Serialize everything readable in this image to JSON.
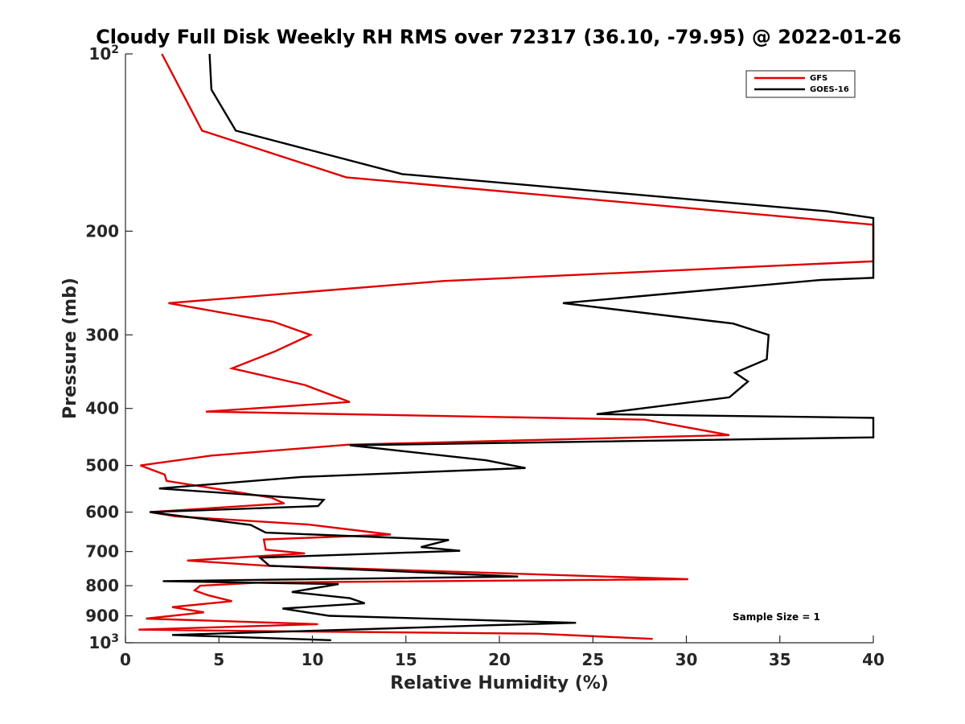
{
  "chart_data": {
    "type": "line",
    "title": "Cloudy Full Disk Weekly RH RMS over 72317 (36.10, -79.95) @ 2022-01-26",
    "xlabel": "Relative Humidity (%)",
    "ylabel": "Pressure (mb)",
    "xlim": [
      0,
      40
    ],
    "ylim": [
      100,
      1000
    ],
    "yscale": "log",
    "y_reversed": true,
    "grid": false,
    "legend_position": "top-right",
    "x_ticks": [
      "0",
      "5",
      "10",
      "15",
      "20",
      "25",
      "30",
      "35",
      "40"
    ],
    "y_ticks": [
      {
        "value": 100,
        "label": "10",
        "sup": "2"
      },
      {
        "value": 200,
        "label": "200",
        "sup": ""
      },
      {
        "value": 300,
        "label": "300",
        "sup": ""
      },
      {
        "value": 400,
        "label": "400",
        "sup": ""
      },
      {
        "value": 500,
        "label": "500",
        "sup": ""
      },
      {
        "value": 600,
        "label": "600",
        "sup": ""
      },
      {
        "value": 700,
        "label": "700",
        "sup": ""
      },
      {
        "value": 800,
        "label": "800",
        "sup": ""
      },
      {
        "value": 900,
        "label": "900",
        "sup": ""
      },
      {
        "value": 1000,
        "label": "10",
        "sup": "3"
      }
    ],
    "annotation": "Sample Size = 1",
    "series": [
      {
        "name": "GFS",
        "color": "#e00000",
        "points": [
          [
            1.95,
            100
          ],
          [
            2.95,
            115
          ],
          [
            4.1,
            135
          ],
          [
            11.8,
            162
          ],
          [
            40,
            195
          ],
          [
            40,
            225
          ],
          [
            17,
            243
          ],
          [
            2.3,
            265
          ],
          [
            7.9,
            285
          ],
          [
            9.9,
            300
          ],
          [
            8.0,
            320
          ],
          [
            5.7,
            342
          ],
          [
            9.6,
            365
          ],
          [
            12.0,
            390
          ],
          [
            4.3,
            405
          ],
          [
            27.8,
            418
          ],
          [
            32.3,
            444
          ],
          [
            11.9,
            461
          ],
          [
            4.6,
            481
          ],
          [
            0.8,
            500
          ],
          [
            2.1,
            518
          ],
          [
            2.2,
            531
          ],
          [
            7.8,
            567
          ],
          [
            8.5,
            580
          ],
          [
            1.3,
            600
          ],
          [
            2.7,
            610
          ],
          [
            9.8,
            630
          ],
          [
            14.2,
            655
          ],
          [
            7.4,
            668
          ],
          [
            7.5,
            695
          ],
          [
            9.6,
            705
          ],
          [
            3.3,
            725
          ],
          [
            7.6,
            740
          ],
          [
            30.1,
            780
          ],
          [
            7.3,
            790
          ],
          [
            4.0,
            800
          ],
          [
            3.7,
            815
          ],
          [
            4.4,
            830
          ],
          [
            5.7,
            850
          ],
          [
            2.5,
            870
          ],
          [
            4.2,
            888
          ],
          [
            1.1,
            910
          ],
          [
            10.3,
            930
          ],
          [
            0.7,
            950
          ],
          [
            6.9,
            955
          ],
          [
            22.0,
            965
          ],
          [
            28.2,
            985
          ]
        ]
      },
      {
        "name": "GOES-16",
        "color": "#000000",
        "points": [
          [
            4.5,
            100
          ],
          [
            4.6,
            115
          ],
          [
            5.9,
            135
          ],
          [
            14.8,
            160
          ],
          [
            37.5,
            185
          ],
          [
            40,
            190
          ],
          [
            40,
            240
          ],
          [
            37.2,
            242
          ],
          [
            23.4,
            265
          ],
          [
            32.5,
            287
          ],
          [
            34.4,
            300
          ],
          [
            34.3,
            330
          ],
          [
            32.6,
            348
          ],
          [
            33.3,
            360
          ],
          [
            32.3,
            383
          ],
          [
            25.2,
            409
          ],
          [
            40,
            415
          ],
          [
            40,
            448
          ],
          [
            12.0,
            462
          ],
          [
            19.3,
            490
          ],
          [
            21.4,
            505
          ],
          [
            9.4,
            523
          ],
          [
            1.8,
            547
          ],
          [
            10.6,
            572
          ],
          [
            10.3,
            586
          ],
          [
            1.3,
            600
          ],
          [
            6.7,
            631
          ],
          [
            7.5,
            650
          ],
          [
            17.3,
            669
          ],
          [
            15.8,
            688
          ],
          [
            17.9,
            698
          ],
          [
            7.2,
            717
          ],
          [
            7.7,
            740
          ],
          [
            21.0,
            772
          ],
          [
            2.0,
            786
          ],
          [
            11.4,
            795
          ],
          [
            8.9,
            820
          ],
          [
            12.0,
            840
          ],
          [
            12.8,
            857
          ],
          [
            8.4,
            875
          ],
          [
            10.9,
            900
          ],
          [
            24.1,
            925
          ],
          [
            19.0,
            935
          ],
          [
            12.0,
            950
          ],
          [
            2.5,
            970
          ],
          [
            11.0,
            990
          ]
        ]
      }
    ]
  }
}
